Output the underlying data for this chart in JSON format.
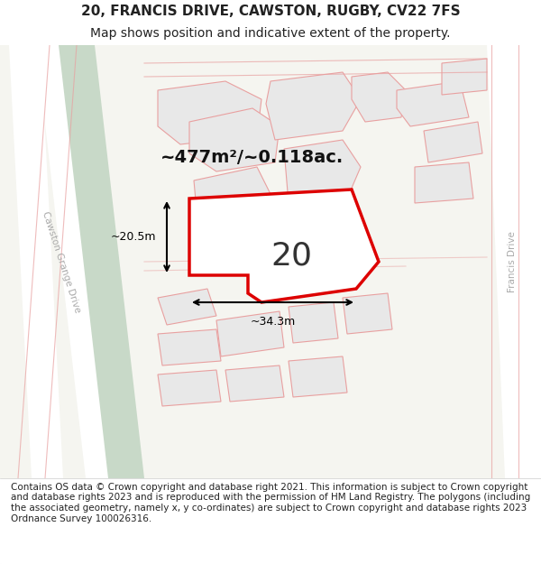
{
  "title": "20, FRANCIS DRIVE, CAWSTON, RUGBY, CV22 7FS",
  "subtitle": "Map shows position and indicative extent of the property.",
  "footer": "Contains OS data © Crown copyright and database right 2021. This information is subject to Crown copyright and database rights 2023 and is reproduced with the permission of HM Land Registry. The polygons (including the associated geometry, namely x, y co-ordinates) are subject to Crown copyright and database rights 2023 Ordnance Survey 100026316.",
  "area_label": "~477m²/~0.118ac.",
  "number_label": "20",
  "width_label": "~34.3m",
  "height_label": "~20.5m",
  "bg_color": "#f5f5f0",
  "road_green_color": "#c8d9c8",
  "road_white_color": "#ffffff",
  "building_fill": "#e8e8e8",
  "building_edge": "#e0a0a0",
  "highlight_fill": "#f0f0f0",
  "highlight_edge": "#dd0000",
  "road_line_color": "#e8a0a0",
  "title_fontsize": 11,
  "subtitle_fontsize": 10,
  "footer_fontsize": 7.5
}
